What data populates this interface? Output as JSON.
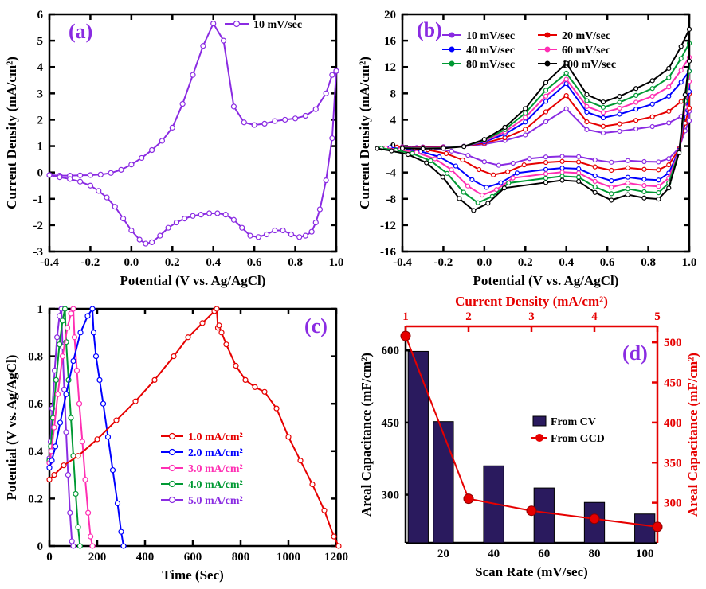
{
  "panelA": {
    "tag": "(a)",
    "tag_color": "#8a2be2",
    "xlabel": "Potential (V vs. Ag/AgCl)",
    "ylabel": "Current Density (mA/cm²)",
    "xlim": [
      -0.4,
      1.0
    ],
    "ylim": [
      -3,
      6
    ],
    "xtick_step": 0.2,
    "ytick_step": 1,
    "axis_width": 2.5,
    "tick_len": 7,
    "label_fontsize": 17,
    "tick_fontsize": 15,
    "series": {
      "label": "10 mV/sec",
      "color": "#8a2be2",
      "line_width": 2,
      "marker": "circle",
      "marker_size": 3,
      "points": [
        [
          -0.4,
          -0.1
        ],
        [
          -0.35,
          -0.12
        ],
        [
          -0.3,
          -0.12
        ],
        [
          -0.25,
          -0.11
        ],
        [
          -0.2,
          -0.1
        ],
        [
          -0.15,
          -0.08
        ],
        [
          -0.1,
          -0.02
        ],
        [
          -0.05,
          0.1
        ],
        [
          0.0,
          0.3
        ],
        [
          0.05,
          0.55
        ],
        [
          0.1,
          0.85
        ],
        [
          0.15,
          1.2
        ],
        [
          0.2,
          1.7
        ],
        [
          0.25,
          2.6
        ],
        [
          0.3,
          3.7
        ],
        [
          0.35,
          4.8
        ],
        [
          0.4,
          5.65
        ],
        [
          0.45,
          5.0
        ],
        [
          0.5,
          2.5
        ],
        [
          0.55,
          1.9
        ],
        [
          0.6,
          1.8
        ],
        [
          0.65,
          1.85
        ],
        [
          0.7,
          1.95
        ],
        [
          0.75,
          2.0
        ],
        [
          0.8,
          2.05
        ],
        [
          0.85,
          2.15
        ],
        [
          0.9,
          2.4
        ],
        [
          0.95,
          3.0
        ],
        [
          0.98,
          3.7
        ],
        [
          1.0,
          3.85
        ],
        [
          1.0,
          3.85
        ],
        [
          0.98,
          1.3
        ],
        [
          0.95,
          -0.3
        ],
        [
          0.92,
          -1.4
        ],
        [
          0.9,
          -1.9
        ],
        [
          0.88,
          -2.25
        ],
        [
          0.85,
          -2.4
        ],
        [
          0.82,
          -2.45
        ],
        [
          0.78,
          -2.35
        ],
        [
          0.74,
          -2.2
        ],
        [
          0.7,
          -2.2
        ],
        [
          0.66,
          -2.35
        ],
        [
          0.62,
          -2.45
        ],
        [
          0.58,
          -2.4
        ],
        [
          0.54,
          -2.1
        ],
        [
          0.5,
          -1.8
        ],
        [
          0.46,
          -1.6
        ],
        [
          0.42,
          -1.55
        ],
        [
          0.38,
          -1.55
        ],
        [
          0.34,
          -1.6
        ],
        [
          0.3,
          -1.65
        ],
        [
          0.26,
          -1.75
        ],
        [
          0.22,
          -1.9
        ],
        [
          0.18,
          -2.1
        ],
        [
          0.14,
          -2.4
        ],
        [
          0.1,
          -2.65
        ],
        [
          0.07,
          -2.7
        ],
        [
          0.04,
          -2.55
        ],
        [
          0.0,
          -2.2
        ],
        [
          -0.04,
          -1.75
        ],
        [
          -0.08,
          -1.3
        ],
        [
          -0.12,
          -0.95
        ],
        [
          -0.16,
          -0.7
        ],
        [
          -0.2,
          -0.5
        ],
        [
          -0.25,
          -0.35
        ],
        [
          -0.3,
          -0.25
        ],
        [
          -0.35,
          -0.18
        ],
        [
          -0.4,
          -0.1
        ]
      ]
    }
  },
  "panelB": {
    "tag": "(b)",
    "tag_color": "#8a2be2",
    "xlabel": "Potential (V vs. Ag/AgCl)",
    "ylabel": "Current Density (mA/cm²)",
    "xlim": [
      -0.4,
      1.0
    ],
    "ylim": [
      -16,
      20
    ],
    "xtick_step": 0.2,
    "ytick_step": 4,
    "axis_width": 2.5,
    "tick_len": 7,
    "series": [
      {
        "label": "10 mV/sec",
        "color": "#8a2be2",
        "line_width": 2,
        "marker": "circle",
        "marker_size": 2.5,
        "scale": 1.0
      },
      {
        "label": "20 mV/sec",
        "color": "#e60000",
        "line_width": 2,
        "marker": "circle",
        "marker_size": 2.5,
        "scale": 1.5
      },
      {
        "label": "40 mV/sec",
        "color": "#0000ff",
        "line_width": 2,
        "marker": "circle",
        "marker_size": 2.5,
        "scale": 2.15
      },
      {
        "label": "60 mV/sec",
        "color": "#ff2fb3",
        "line_width": 2,
        "marker": "circle",
        "marker_size": 2.5,
        "scale": 2.55
      },
      {
        "label": "80 mV/sec",
        "color": "#009933",
        "line_width": 2,
        "marker": "circle",
        "marker_size": 2.5,
        "scale": 2.95
      },
      {
        "label": "100 mV/sec",
        "color": "#000000",
        "line_width": 2,
        "marker": "circle",
        "marker_size": 2.5,
        "scale": 3.35
      }
    ],
    "cv_forward": [
      [
        -0.4,
        -0.1
      ],
      [
        -0.3,
        -0.12
      ],
      [
        -0.2,
        -0.1
      ],
      [
        -0.1,
        -0.02
      ],
      [
        0.0,
        0.3
      ],
      [
        0.1,
        0.85
      ],
      [
        0.2,
        1.7
      ],
      [
        0.3,
        3.7
      ],
      [
        0.4,
        5.65
      ],
      [
        0.5,
        2.5
      ],
      [
        0.58,
        1.9
      ],
      [
        0.66,
        1.9
      ],
      [
        0.74,
        2.0
      ],
      [
        0.82,
        2.1
      ],
      [
        0.9,
        2.4
      ],
      [
        0.96,
        3.2
      ],
      [
        1.0,
        3.85
      ]
    ],
    "cv_reverse": [
      [
        1.0,
        3.85
      ],
      [
        0.98,
        1.3
      ],
      [
        0.95,
        -0.3
      ],
      [
        0.9,
        -1.9
      ],
      [
        0.85,
        -2.4
      ],
      [
        0.78,
        -2.35
      ],
      [
        0.7,
        -2.2
      ],
      [
        0.62,
        -2.45
      ],
      [
        0.54,
        -2.1
      ],
      [
        0.46,
        -1.6
      ],
      [
        0.38,
        -1.55
      ],
      [
        0.3,
        -1.65
      ],
      [
        0.22,
        -1.9
      ],
      [
        0.14,
        -2.4
      ],
      [
        0.07,
        -2.7
      ],
      [
        0.0,
        -2.2
      ],
      [
        -0.08,
        -1.3
      ],
      [
        -0.16,
        -0.7
      ],
      [
        -0.25,
        -0.35
      ],
      [
        -0.33,
        -0.2
      ],
      [
        -0.4,
        -0.1
      ]
    ]
  },
  "panelC": {
    "tag": "(c)",
    "tag_color": "#8a2be2",
    "xlabel": "Time (Sec)",
    "ylabel": "Potential (V vs. Ag/AgCl)",
    "xlim": [
      0,
      1200
    ],
    "ylim": [
      0,
      1.0
    ],
    "xtick_step": 200,
    "ytick_step": 0.2,
    "axis_width": 2.5,
    "tick_len": 7,
    "series": [
      {
        "label": "1.0 mA/cm²",
        "color": "#e60000",
        "line_width": 2,
        "marker": "circle",
        "marker_size": 3,
        "points": [
          [
            0,
            0.28
          ],
          [
            20,
            0.3
          ],
          [
            60,
            0.34
          ],
          [
            120,
            0.38
          ],
          [
            200,
            0.45
          ],
          [
            280,
            0.53
          ],
          [
            360,
            0.61
          ],
          [
            440,
            0.7
          ],
          [
            520,
            0.8
          ],
          [
            580,
            0.88
          ],
          [
            640,
            0.94
          ],
          [
            690,
            0.99
          ],
          [
            700,
            1.0
          ],
          [
            705,
            0.92
          ],
          [
            710,
            0.93
          ],
          [
            720,
            0.9
          ],
          [
            740,
            0.85
          ],
          [
            780,
            0.76
          ],
          [
            820,
            0.7
          ],
          [
            860,
            0.67
          ],
          [
            900,
            0.65
          ],
          [
            950,
            0.58
          ],
          [
            1000,
            0.46
          ],
          [
            1050,
            0.36
          ],
          [
            1100,
            0.26
          ],
          [
            1150,
            0.15
          ],
          [
            1190,
            0.04
          ],
          [
            1210,
            0.0
          ]
        ]
      },
      {
        "label": "2.0 mA/cm²",
        "color": "#0000ff",
        "line_width": 2,
        "marker": "circle",
        "marker_size": 3,
        "points": [
          [
            0,
            0.33
          ],
          [
            10,
            0.36
          ],
          [
            25,
            0.42
          ],
          [
            45,
            0.52
          ],
          [
            70,
            0.64
          ],
          [
            100,
            0.78
          ],
          [
            130,
            0.9
          ],
          [
            160,
            0.97
          ],
          [
            180,
            1.0
          ],
          [
            185,
            0.9
          ],
          [
            195,
            0.8
          ],
          [
            210,
            0.7
          ],
          [
            225,
            0.6
          ],
          [
            245,
            0.46
          ],
          [
            265,
            0.32
          ],
          [
            285,
            0.18
          ],
          [
            300,
            0.06
          ],
          [
            310,
            0.0
          ]
        ]
      },
      {
        "label": "3.0 mA/cm²",
        "color": "#ff2fb3",
        "line_width": 2,
        "marker": "circle",
        "marker_size": 3,
        "points": [
          [
            0,
            0.35
          ],
          [
            8,
            0.4
          ],
          [
            20,
            0.5
          ],
          [
            35,
            0.64
          ],
          [
            55,
            0.8
          ],
          [
            75,
            0.92
          ],
          [
            90,
            0.98
          ],
          [
            100,
            1.0
          ],
          [
            105,
            0.88
          ],
          [
            115,
            0.74
          ],
          [
            125,
            0.6
          ],
          [
            138,
            0.44
          ],
          [
            150,
            0.28
          ],
          [
            162,
            0.14
          ],
          [
            172,
            0.04
          ],
          [
            180,
            0.0
          ]
        ]
      },
      {
        "label": "4.0 mA/cm²",
        "color": "#009933",
        "line_width": 2,
        "marker": "circle",
        "marker_size": 3,
        "points": [
          [
            0,
            0.36
          ],
          [
            6,
            0.42
          ],
          [
            15,
            0.54
          ],
          [
            28,
            0.7
          ],
          [
            42,
            0.85
          ],
          [
            55,
            0.95
          ],
          [
            65,
            1.0
          ],
          [
            70,
            0.86
          ],
          [
            80,
            0.7
          ],
          [
            90,
            0.54
          ],
          [
            100,
            0.38
          ],
          [
            110,
            0.22
          ],
          [
            120,
            0.08
          ],
          [
            128,
            0.0
          ]
        ]
      },
      {
        "label": "5.0 mA/cm²",
        "color": "#8a2be2",
        "line_width": 2,
        "marker": "circle",
        "marker_size": 3,
        "points": [
          [
            0,
            0.37
          ],
          [
            5,
            0.44
          ],
          [
            12,
            0.58
          ],
          [
            22,
            0.74
          ],
          [
            32,
            0.88
          ],
          [
            42,
            0.97
          ],
          [
            50,
            1.0
          ],
          [
            55,
            0.84
          ],
          [
            62,
            0.66
          ],
          [
            70,
            0.48
          ],
          [
            78,
            0.3
          ],
          [
            86,
            0.14
          ],
          [
            94,
            0.02
          ],
          [
            100,
            0.0
          ]
        ]
      }
    ]
  },
  "panelD": {
    "tag": "(d)",
    "tag_color": "#8a2be2",
    "xlabel": "Scan Rate (mV/sec)",
    "ylabel": "Areal Capacitance (mF/cm²)",
    "x2label": "Current Density (mA/cm²)",
    "y2label": "Areal Capacitance (mF/cm²)",
    "xlim": [
      5,
      105
    ],
    "ylim": [
      200,
      650
    ],
    "y2lim": [
      250,
      520
    ],
    "xticks": [
      20,
      40,
      60,
      80,
      100
    ],
    "yticks": [
      300,
      450,
      600
    ],
    "y2ticks": [
      300,
      350,
      400,
      450,
      500
    ],
    "x2ticks": [
      1,
      2,
      3,
      4,
      5
    ],
    "axis_width": 2.5,
    "tick_len": 7,
    "axis2_color": "#e60000",
    "bars": {
      "label": "From CV",
      "fill": "#2a1a5e",
      "stroke": "#000000",
      "width": 8,
      "data": [
        [
          10,
          598
        ],
        [
          20,
          452
        ],
        [
          40,
          360
        ],
        [
          60,
          314
        ],
        [
          80,
          284
        ],
        [
          100,
          260
        ]
      ]
    },
    "line": {
      "label": "From GCD",
      "color": "#e60000",
      "line_width": 2,
      "marker": "circle",
      "marker_size": 6,
      "data": [
        [
          1,
          508
        ],
        [
          2,
          305
        ],
        [
          3,
          290
        ],
        [
          4,
          280
        ],
        [
          5,
          270
        ]
      ]
    }
  }
}
